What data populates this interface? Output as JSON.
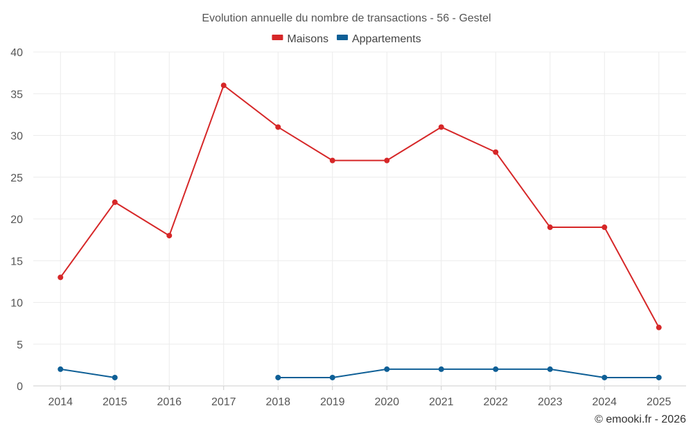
{
  "chart_data": {
    "type": "line",
    "title": "Evolution annuelle du nombre de transactions - 56 - Gestel",
    "xlabel": "",
    "ylabel": "",
    "categories": [
      "2014",
      "2015",
      "2016",
      "2017",
      "2018",
      "2019",
      "2020",
      "2021",
      "2022",
      "2023",
      "2024",
      "2025"
    ],
    "ylim": [
      0,
      40
    ],
    "yticks": [
      0,
      5,
      10,
      15,
      20,
      25,
      30,
      35,
      40
    ],
    "grid": true,
    "legend_position": "top-center",
    "series": [
      {
        "name": "Maisons",
        "color": "#d62728",
        "values": [
          13,
          22,
          18,
          36,
          31,
          27,
          27,
          31,
          28,
          19,
          19,
          7
        ]
      },
      {
        "name": "Appartements",
        "color": "#0e5f96",
        "values": [
          2,
          1,
          null,
          null,
          1,
          1,
          2,
          2,
          2,
          2,
          1,
          1
        ]
      }
    ]
  },
  "credit": "© emooki.fr - 2026"
}
